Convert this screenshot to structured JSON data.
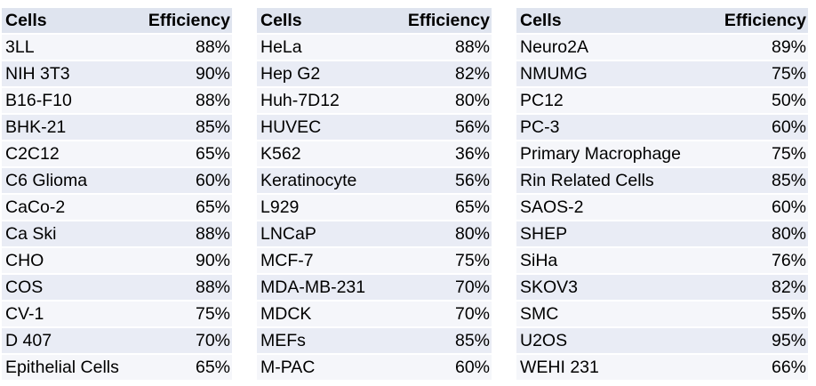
{
  "headers": {
    "cells": "Cells",
    "efficiency": "Efficiency"
  },
  "tables": [
    {
      "rows": [
        {
          "cell": "3LL",
          "eff": "88%"
        },
        {
          "cell": "NIH 3T3",
          "eff": "90%"
        },
        {
          "cell": "B16-F10",
          "eff": "88%"
        },
        {
          "cell": "BHK-21",
          "eff": "85%"
        },
        {
          "cell": "C2C12",
          "eff": "65%"
        },
        {
          "cell": "C6 Glioma",
          "eff": "60%"
        },
        {
          "cell": "CaCo-2",
          "eff": "65%"
        },
        {
          "cell": "Ca Ski",
          "eff": "88%"
        },
        {
          "cell": "CHO",
          "eff": "90%"
        },
        {
          "cell": "COS",
          "eff": "88%"
        },
        {
          "cell": "CV-1",
          "eff": "75%"
        },
        {
          "cell": "D 407",
          "eff": "70%"
        },
        {
          "cell": "Epithelial Cells",
          "eff": "65%"
        }
      ]
    },
    {
      "rows": [
        {
          "cell": "HeLa",
          "eff": "88%"
        },
        {
          "cell": "Hep G2",
          "eff": "82%"
        },
        {
          "cell": "Huh-7D12",
          "eff": "80%"
        },
        {
          "cell": "HUVEC",
          "eff": "56%"
        },
        {
          "cell": "K562",
          "eff": "36%"
        },
        {
          "cell": "Keratinocyte",
          "eff": "56%"
        },
        {
          "cell": "L929",
          "eff": "65%"
        },
        {
          "cell": "LNCaP",
          "eff": "80%"
        },
        {
          "cell": "MCF-7",
          "eff": "75%"
        },
        {
          "cell": "MDA-MB-231",
          "eff": "70%"
        },
        {
          "cell": "MDCK",
          "eff": "70%"
        },
        {
          "cell": "MEFs",
          "eff": "85%"
        },
        {
          "cell": "M-PAC",
          "eff": "60%"
        }
      ]
    },
    {
      "rows": [
        {
          "cell": "Neuro2A",
          "eff": "89%"
        },
        {
          "cell": "NMUMG",
          "eff": "75%"
        },
        {
          "cell": "PC12",
          "eff": "50%"
        },
        {
          "cell": "PC-3",
          "eff": "60%"
        },
        {
          "cell": "Primary Macrophage",
          "eff": "75%"
        },
        {
          "cell": "Rin Related Cells",
          "eff": "85%"
        },
        {
          "cell": "SAOS-2",
          "eff": "60%"
        },
        {
          "cell": "SHEP",
          "eff": "80%"
        },
        {
          "cell": "SiHa",
          "eff": "76%"
        },
        {
          "cell": "SKOV3",
          "eff": "82%"
        },
        {
          "cell": "SMC",
          "eff": "55%"
        },
        {
          "cell": "U2OS",
          "eff": "95%"
        },
        {
          "cell": "WEHI 231",
          "eff": "66%"
        }
      ]
    }
  ]
}
